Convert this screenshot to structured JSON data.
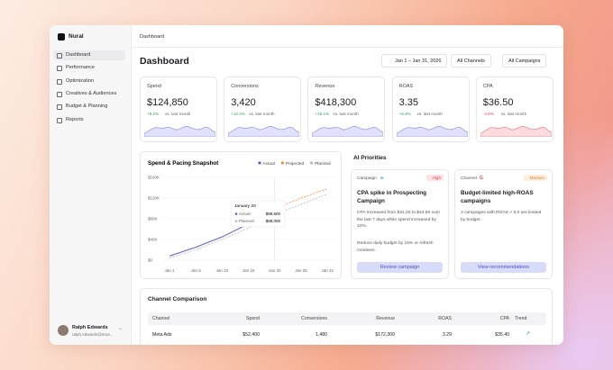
{
  "sidebar": {
    "brand": "Nural",
    "nav": [
      "Dashboard",
      "Performance",
      "Optimization",
      "Creatives & Audiences",
      "Budget & Planning",
      "Reports"
    ],
    "active": 0,
    "user": {
      "name": "Ralph Edwards",
      "email": "ralph.edwards@ema..."
    }
  },
  "breadcrumb": "Dashboard",
  "title": "Dashboard",
  "filters": [
    "Jan 1 – Jan 31, 2026",
    "All Channels",
    "All Campaigns"
  ],
  "kpis": [
    {
      "label": "Spend",
      "value": "$124,850",
      "delta": "+8.2%",
      "compare": "vs. last month"
    },
    {
      "label": "Conversions",
      "value": "3,420",
      "delta": "+12.4%",
      "compare": "vs. last month"
    },
    {
      "label": "Revenue",
      "value": "$418,300",
      "delta": "+15.1%",
      "compare": "vs. last month"
    },
    {
      "label": "ROAS",
      "value": "3.35",
      "delta": "+6.4%",
      "compare": "vs. last month"
    },
    {
      "label": "CPA",
      "value": "$36.50",
      "delta": "-3.8%",
      "compare": "vs. last month"
    }
  ],
  "spend_chart": {
    "type": "line",
    "title": "Spend & Pacing Snapshot",
    "categories": [
      "Jan 1",
      "Jan 5",
      "Jan 10",
      "Jan 15",
      "Jan 20",
      "Jan 25",
      "Jan 31"
    ],
    "ylim": [
      0,
      160000
    ],
    "yticks": [
      {
        "value": 0,
        "label": "$0"
      },
      {
        "value": 40000,
        "label": "$40K"
      },
      {
        "value": 80000,
        "label": "$80K"
      },
      {
        "value": 120000,
        "label": "$120K"
      },
      {
        "value": 160000,
        "label": "$160K"
      }
    ],
    "series": [
      {
        "name": "Actual",
        "color": "#5b5fd6",
        "dash": false,
        "values": [
          8000,
          25000,
          45000,
          70000,
          99600,
          null,
          null
        ]
      },
      {
        "name": "Projected",
        "color": "#f08a4b",
        "dash": true,
        "values": [
          null,
          null,
          null,
          null,
          99600,
          120000,
          138000
        ]
      },
      {
        "name": "Planned",
        "color": "#b8b8c0",
        "dash": true,
        "values": [
          4000,
          20000,
          40000,
          62000,
          88000,
          108000,
          128000
        ]
      }
    ],
    "tooltip": {
      "title": "January 20",
      "rows": [
        {
          "label": "Actual:",
          "value": "$99,600"
        },
        {
          "label": "Planned:",
          "value": "$88,000"
        }
      ]
    }
  },
  "ai_priorities": {
    "title": "AI Priorities",
    "cards": [
      {
        "kind": "Campaign",
        "badge": "High",
        "title": "CPA spike in Prospecting Campaign",
        "body": "CPA increased from $31.20 to $44.90 over the last 7 days while spend increased by 22%.",
        "action": "Reduce daily budget by 15% or refresh creatives.",
        "button": "Review campaign"
      },
      {
        "kind": "Channel",
        "badge": "Medium",
        "title": "Budget-limited high-ROAS campaigns",
        "body": "3 campaigns with ROAS > 5.0 are limited by budget.",
        "action": "",
        "button": "View recommendations"
      }
    ]
  },
  "channel_comparison": {
    "title": "Channel Comparison",
    "columns": [
      "Channel",
      "Spend",
      "Conversions",
      "Revenue",
      "ROAS",
      "CPA",
      "Trend"
    ],
    "rows": [
      [
        "Meta Ads",
        "$52,400",
        "1,480",
        "$172,300",
        "3.29",
        "$35.40"
      ]
    ]
  }
}
